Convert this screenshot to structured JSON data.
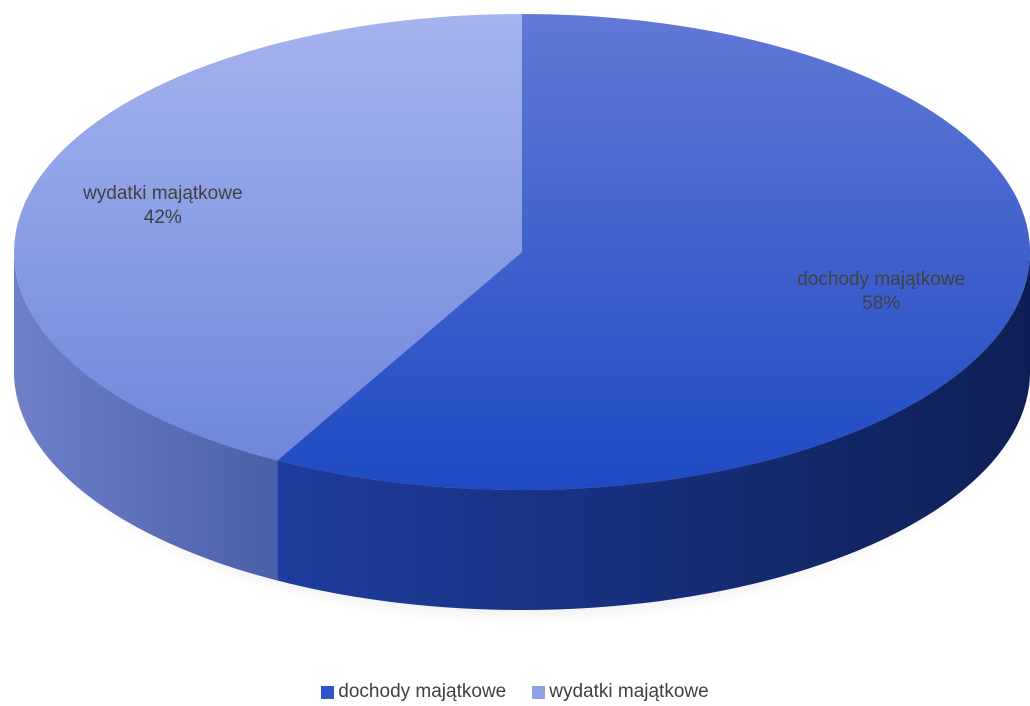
{
  "chart_data": {
    "type": "pie",
    "style": "3d",
    "categories": [
      "dochody majątkowe",
      "wydatki majątkowe"
    ],
    "values": [
      58,
      42
    ],
    "labels": [
      "58%",
      "42%"
    ],
    "colors": [
      "#2f55c9",
      "#8ea2e6"
    ],
    "legend": {
      "position": "bottom",
      "entries": [
        "dochody majątkowe",
        "wydatki majątkowe"
      ]
    }
  }
}
